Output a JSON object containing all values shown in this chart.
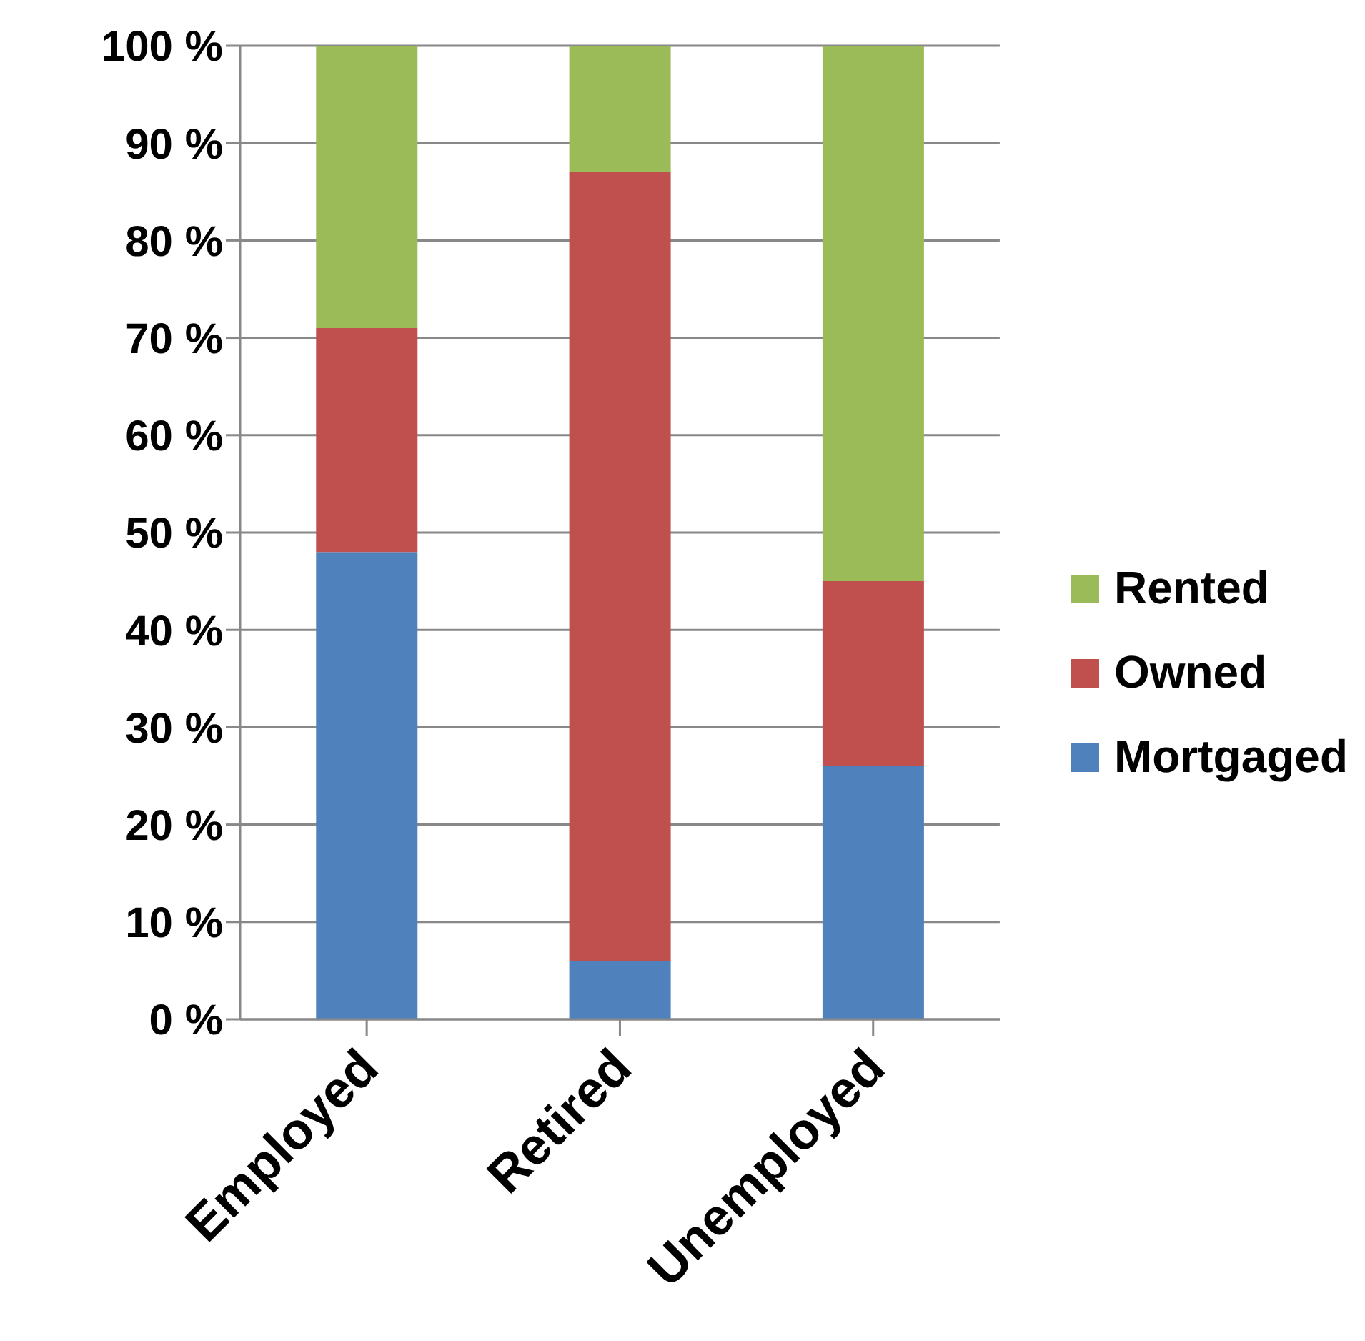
{
  "chart_data": {
    "type": "bar",
    "stacked": true,
    "categories": [
      "Employed",
      "Retired",
      "Unemployed"
    ],
    "series": [
      {
        "name": "Mortgaged",
        "color": "#4f81bd",
        "values": [
          48,
          6,
          26
        ]
      },
      {
        "name": "Owned",
        "color": "#c0504d",
        "values": [
          23,
          81,
          19
        ]
      },
      {
        "name": "Rented",
        "color": "#9bbb59",
        "values": [
          29,
          13,
          55
        ]
      }
    ],
    "ylim": [
      0,
      100
    ],
    "yticks": [
      {
        "value": 0,
        "label": "0 %"
      },
      {
        "value": 10,
        "label": "10 %"
      },
      {
        "value": 20,
        "label": "20 %"
      },
      {
        "value": 30,
        "label": "30 %"
      },
      {
        "value": 40,
        "label": "40 %"
      },
      {
        "value": 50,
        "label": "50 %"
      },
      {
        "value": 60,
        "label": "60 %"
      },
      {
        "value": 70,
        "label": "70 %"
      },
      {
        "value": 80,
        "label": "80 %"
      },
      {
        "value": 90,
        "label": "90 %"
      },
      {
        "value": 100,
        "label": "100 %"
      }
    ],
    "grid": "y",
    "legend": "right"
  }
}
